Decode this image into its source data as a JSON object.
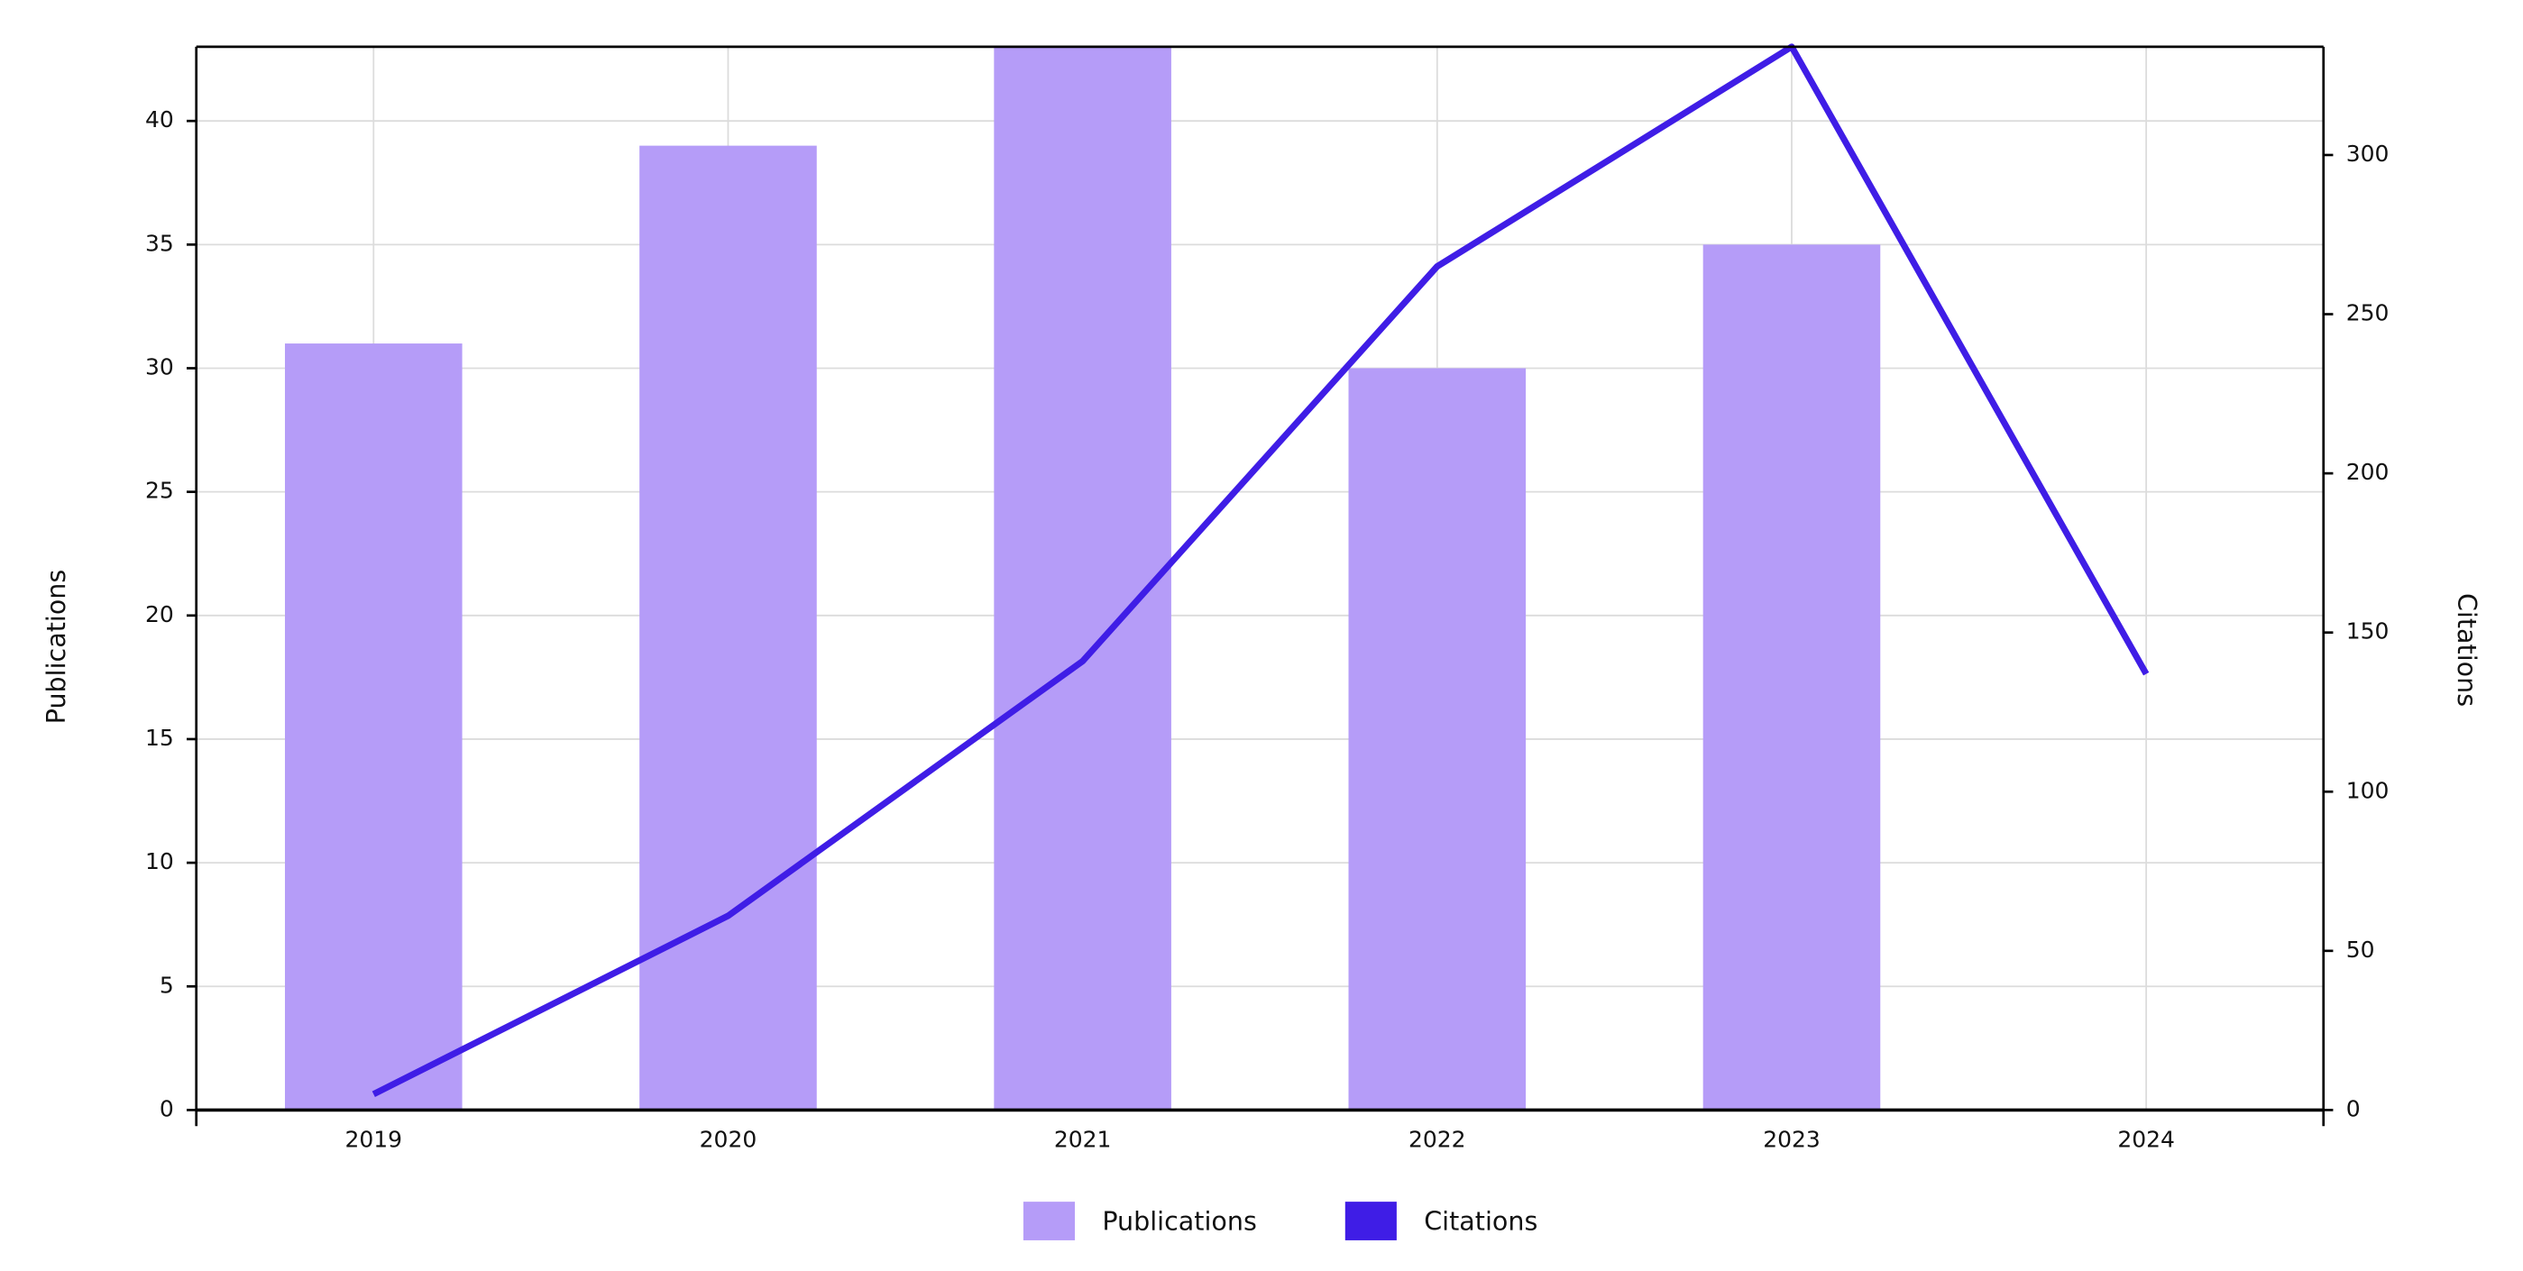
{
  "chart_data": {
    "type": "bar",
    "categories": [
      "2019",
      "2020",
      "2021",
      "2022",
      "2023",
      "2024"
    ],
    "series": [
      {
        "name": "Publications",
        "type": "bar",
        "color": "#b59cf8",
        "values": [
          31,
          39,
          43,
          30,
          35,
          null
        ]
      },
      {
        "name": "Citations",
        "type": "line",
        "color": "#3f1de6",
        "axis": "y2",
        "values": [
          5,
          61,
          141,
          265,
          334,
          137
        ]
      }
    ],
    "ylabel": "Publications",
    "y2label": "Citations",
    "ylim": [
      0,
      43
    ],
    "yticks": [
      0,
      5,
      10,
      15,
      20,
      25,
      30,
      35,
      40
    ],
    "y2lim": [
      0,
      334
    ],
    "y2ticks": [
      0,
      50,
      100,
      150,
      200,
      250,
      300
    ],
    "grid": true,
    "legend": "bottom"
  }
}
